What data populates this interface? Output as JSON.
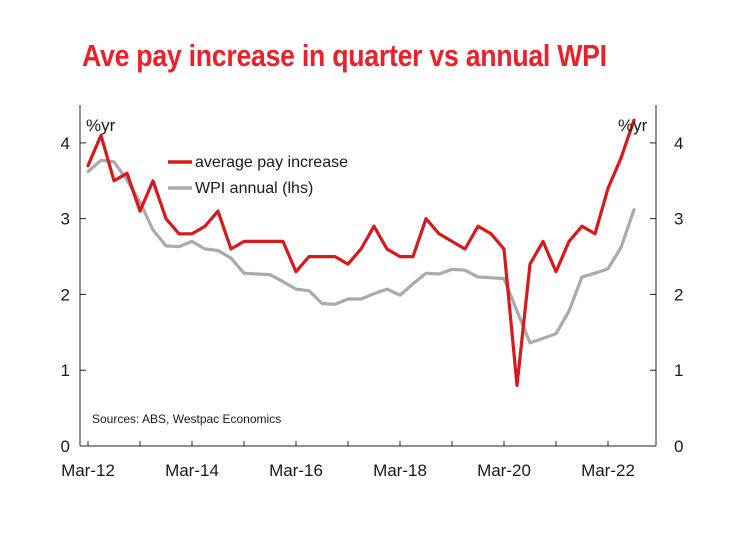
{
  "chart_data": {
    "type": "line",
    "title": "Ave pay increase in quarter vs annual WPI",
    "ylabel_left": "%yr",
    "ylabel_right": "%yr",
    "ylim": [
      0,
      4.5
    ],
    "yticks": [
      0,
      1,
      2,
      3,
      4
    ],
    "x_tick_labels": [
      "Mar-12",
      "Mar-14",
      "Mar-16",
      "Mar-18",
      "Mar-20",
      "Mar-22"
    ],
    "source": "Sources: ABS, Westpac Economics",
    "legend_position": "top-center",
    "grid": false,
    "series": [
      {
        "name": "average pay increase",
        "color": "#d7191c",
        "values": [
          3.7,
          4.1,
          3.5,
          3.6,
          3.1,
          3.5,
          3.0,
          2.8,
          2.8,
          2.9,
          3.1,
          2.6,
          2.7,
          2.7,
          2.7,
          2.7,
          2.3,
          2.5,
          2.5,
          2.5,
          2.4,
          2.6,
          2.9,
          2.6,
          2.5,
          2.5,
          3.0,
          2.8,
          2.7,
          2.6,
          2.9,
          2.8,
          2.6,
          0.8,
          2.4,
          2.7,
          2.3,
          2.7,
          2.9,
          2.8,
          3.4,
          3.8,
          4.3
        ]
      },
      {
        "name": "WPI annual (lhs)",
        "color": "#aaaaaa",
        "values": [
          3.62,
          3.77,
          3.75,
          3.51,
          3.22,
          2.85,
          2.64,
          2.63,
          2.7,
          2.6,
          2.58,
          2.48,
          2.28,
          2.27,
          2.26,
          2.17,
          2.07,
          2.05,
          1.88,
          1.87,
          1.94,
          1.94,
          2.01,
          2.07,
          1.99,
          2.14,
          2.28,
          2.27,
          2.33,
          2.32,
          2.23,
          2.22,
          2.21,
          1.78,
          1.36,
          1.42,
          1.48,
          1.78,
          2.23,
          2.28,
          2.34,
          2.62,
          3.12
        ]
      }
    ]
  },
  "legend": {
    "items": [
      {
        "label": "average pay increase",
        "color": "#d7191c"
      },
      {
        "label": "WPI annual (lhs)",
        "color": "#aaaaaa"
      }
    ]
  }
}
